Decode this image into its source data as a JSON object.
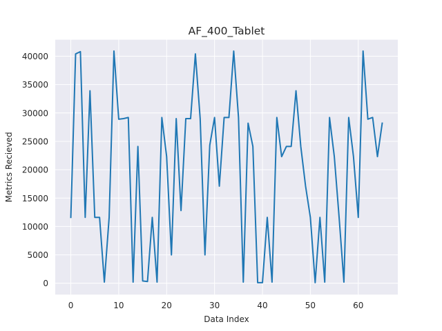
{
  "chart_data": {
    "type": "line",
    "title": "AF_400_Tablet",
    "xlabel": "Data Index",
    "ylabel": "Metrics Recieved",
    "xlim": [
      -3.25,
      68.25
    ],
    "ylim": [
      -2000,
      42900
    ],
    "xticks": [
      0,
      10,
      20,
      30,
      40,
      50,
      60
    ],
    "yticks": [
      0,
      5000,
      10000,
      15000,
      20000,
      25000,
      30000,
      35000,
      40000
    ],
    "grid": true,
    "line_color": "#1f77b4",
    "background_color": "#eaeaf2",
    "series": [
      {
        "x": [
          0,
          1,
          2,
          3,
          4,
          5,
          6,
          7,
          8,
          9,
          10,
          11,
          12,
          13,
          14,
          15,
          16,
          17,
          18,
          19,
          20,
          21,
          22,
          23,
          24,
          25,
          26,
          27,
          28,
          29,
          30,
          31,
          32,
          33,
          34,
          35,
          36,
          37,
          38,
          39,
          40,
          41,
          42,
          43,
          44,
          45,
          46,
          47,
          48,
          49,
          50,
          51,
          52,
          53,
          54,
          55,
          56,
          57,
          58,
          59,
          60,
          61,
          62,
          63,
          64,
          65
        ],
        "y": [
          11600,
          40400,
          40800,
          11600,
          33900,
          11600,
          11600,
          200,
          11600,
          40900,
          28900,
          29000,
          29200,
          200,
          24100,
          400,
          300,
          11600,
          200,
          29200,
          22300,
          5000,
          29000,
          12800,
          29000,
          29000,
          40400,
          29000,
          5000,
          24300,
          29200,
          17100,
          29200,
          29200,
          40900,
          29200,
          200,
          28200,
          24100,
          100,
          100,
          11600,
          200,
          29200,
          22300,
          24100,
          24100,
          33900,
          24100,
          17100,
          11600,
          100,
          11600,
          200,
          29200,
          22300,
          11600,
          200,
          29200,
          22300,
          11600,
          40900,
          28900,
          29200,
          22300,
          28200
        ]
      }
    ]
  }
}
